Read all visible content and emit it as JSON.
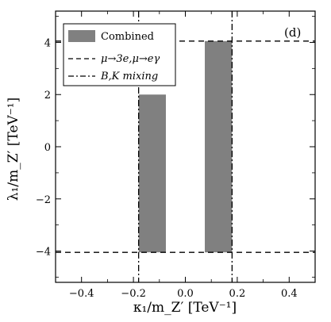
{
  "chart_data": {
    "type": "area",
    "xlabel": "κ₁/m_Z′ [TeV⁻¹]",
    "ylabel": "λ₁/m_Z′ [TeV⁻¹]",
    "xlim": [
      -0.5,
      0.5
    ],
    "ylim": [
      -5.2,
      5.2
    ],
    "x_ticks": [
      -0.4,
      -0.2,
      0.0,
      0.2,
      0.4
    ],
    "x_tick_labels": [
      "−0.4",
      "−0.2",
      "0.0",
      "0.2",
      "0.4"
    ],
    "y_ticks": [
      -4,
      -2,
      0,
      2,
      4
    ],
    "y_tick_labels": [
      "−4",
      "−2",
      "0",
      "2",
      "4"
    ],
    "panel_label": "(d)",
    "grid": false,
    "legend_placement": "top-left",
    "series": [
      {
        "name": "Combined",
        "style": "filled",
        "color": "#808080",
        "regions": [
          {
            "x": [
              -0.18,
              -0.075
            ],
            "y": [
              -4.05,
              2.0
            ]
          },
          {
            "x": [
              0.075,
              0.18
            ],
            "y": [
              -4.05,
              4.05
            ]
          }
        ]
      },
      {
        "name": "μ→3e,μ→eγ",
        "style": "dashed",
        "color": "#000000",
        "hlines": [
          4.05,
          -4.05
        ]
      },
      {
        "name": "B,K mixing",
        "style": "dashdot",
        "color": "#000000",
        "vlines": [
          -0.18,
          0.18
        ]
      }
    ]
  }
}
